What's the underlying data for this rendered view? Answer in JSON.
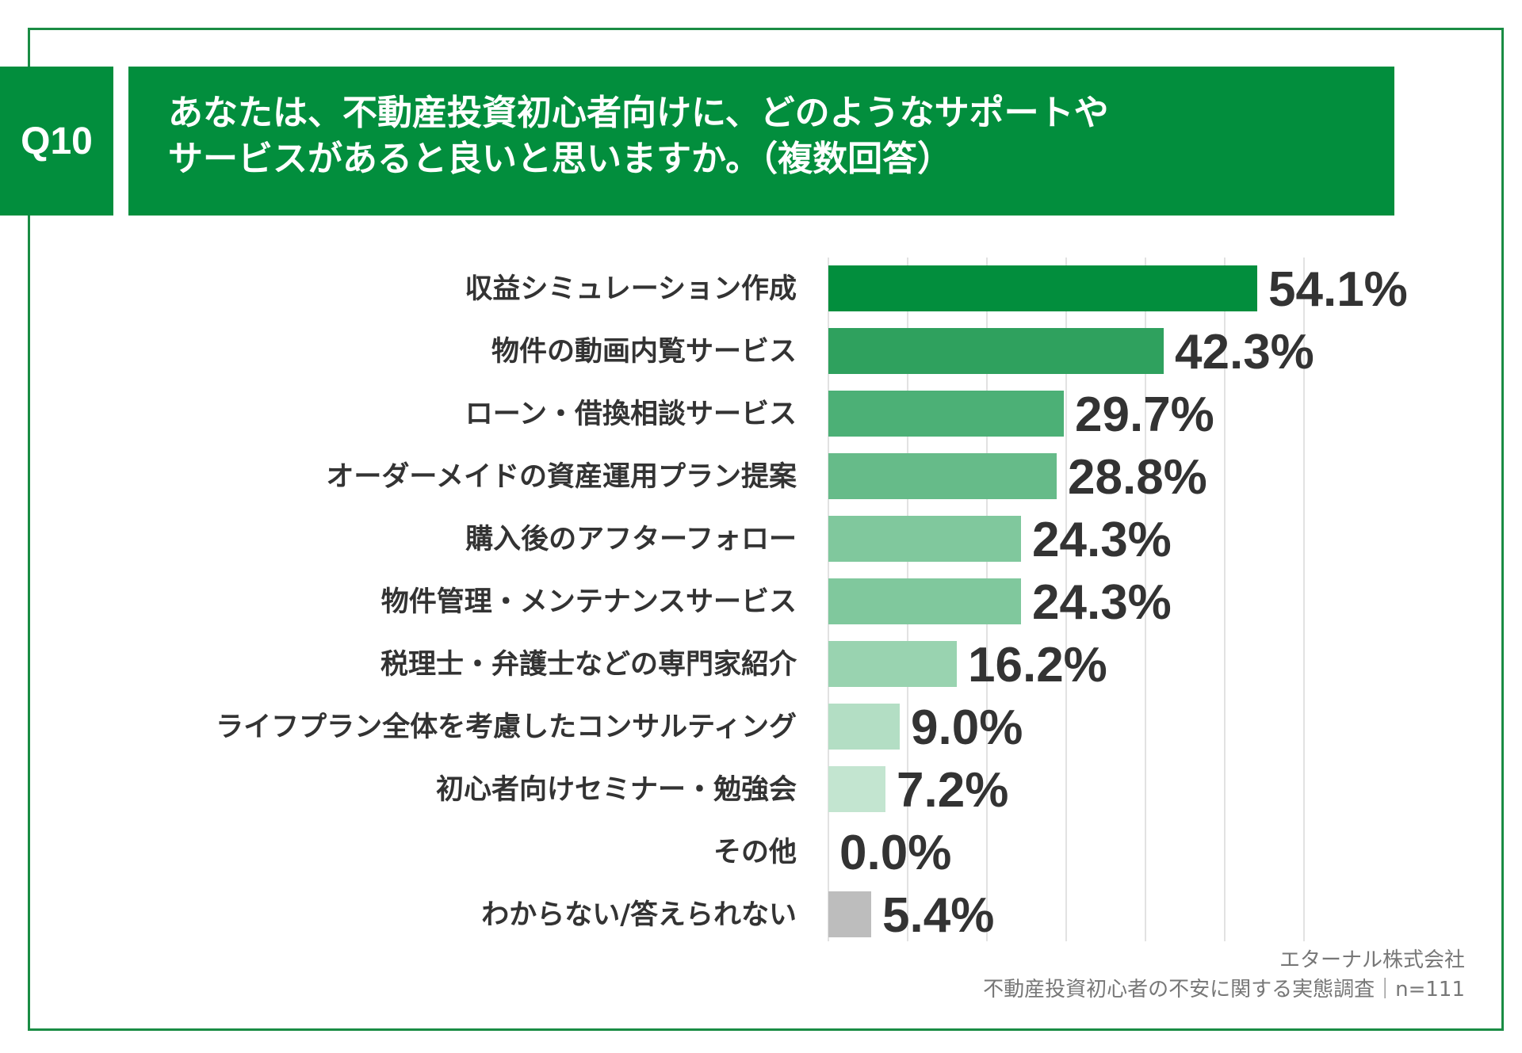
{
  "header": {
    "badge": "Q10",
    "title_line1": "あなたは、不動産投資初心者向けに、どのようなサポートや",
    "title_line2": "サービスがあると良いと思いますか。（複数回答）"
  },
  "chart_data": {
    "type": "bar",
    "orientation": "horizontal",
    "categories": [
      "収益シミュレーション作成",
      "物件の動画内覧サービス",
      "ローン・借換相談サービス",
      "オーダーメイドの資産運用プラン提案",
      "購入後のアフターフォロー",
      "物件管理・メンテナンスサービス",
      "税理士・弁護士などの専門家紹介",
      "ライフプラン全体を考慮したコンサルティング",
      "初心者向けセミナー・勉強会",
      "その他",
      "わからない/答えられない"
    ],
    "values": [
      54.1,
      42.3,
      29.7,
      28.8,
      24.3,
      24.3,
      16.2,
      9.0,
      7.2,
      0.0,
      5.4
    ],
    "value_labels": [
      "54.1%",
      "42.3%",
      "29.7%",
      "28.8%",
      "24.3%",
      "24.3%",
      "16.2%",
      "9.0%",
      "7.2%",
      "0.0%",
      "5.4%"
    ],
    "bar_colors": [
      "#028e3d",
      "#2fa15e",
      "#4cb076",
      "#66bb89",
      "#80c89d",
      "#80c89d",
      "#99d3b0",
      "#b3dec4",
      "#c3e5d0",
      "#d4eddd",
      "#bdbdbd"
    ],
    "xlim": [
      0,
      60
    ],
    "grid": true
  },
  "footer": {
    "company": "エターナル株式会社",
    "survey": "不動産投資初心者の不安に関する実態調査｜n=111"
  }
}
